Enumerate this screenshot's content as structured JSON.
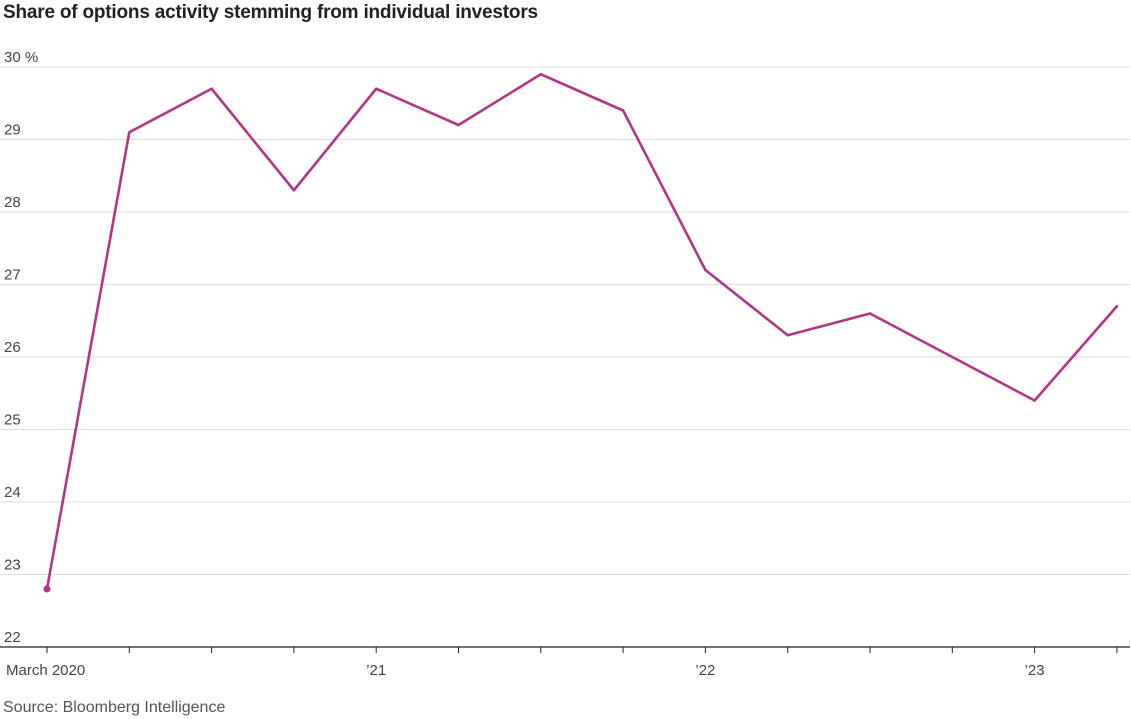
{
  "chart_data": {
    "type": "line",
    "title": "Share of options activity stemming from individual investors",
    "source": "Source: Bloomberg Intelligence",
    "x_tick_labels": [
      "March 2020",
      "’21",
      "’22",
      "’23"
    ],
    "y_ticks": [
      22,
      23,
      24,
      25,
      26,
      27,
      28,
      29,
      30
    ],
    "y_tick_labels": [
      "22",
      "23",
      "24",
      "25",
      "26",
      "27",
      "28",
      "29",
      "30 %"
    ],
    "ylim": [
      22,
      30
    ],
    "xlabel": "",
    "ylabel": "",
    "grid": true,
    "colors": {
      "series": "#b23586",
      "grid": "#dddddd",
      "axis": "#222222"
    },
    "x_ticks": [
      "2020-03",
      "2020-06",
      "2020-09",
      "2020-12",
      "2021-03",
      "2021-06",
      "2021-09",
      "2021-12",
      "2022-03",
      "2022-06",
      "2022-09",
      "2022-12",
      "2023-03",
      "2023-06"
    ],
    "series": [
      {
        "x": [
          "2020-03",
          "2020-06",
          "2020-09",
          "2020-12",
          "2021-03",
          "2021-06",
          "2021-09",
          "2021-12",
          "2022-03",
          "2022-06",
          "2022-09",
          "2022-12",
          "2023-03",
          "2023-06"
        ],
        "values": [
          22.8,
          29.1,
          29.7,
          28.3,
          29.7,
          29.2,
          29.9,
          29.4,
          27.2,
          26.3,
          26.6,
          26.0,
          25.4,
          26.7
        ]
      }
    ]
  }
}
